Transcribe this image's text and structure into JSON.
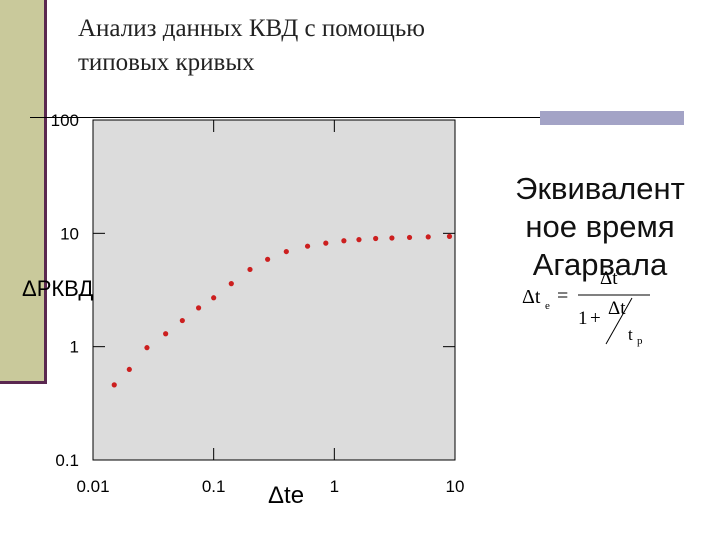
{
  "title_lines": [
    "Анализ данных КВД с помощью",
    "типовых кривых"
  ],
  "side_title_lines": [
    "Эквивалент",
    "ное время",
    "Агарвала"
  ],
  "formula": {
    "lhs_symbol": "Δt",
    "lhs_sub": "e",
    "equals": "=",
    "numerator": "Δt",
    "den_one": "1",
    "den_plus": "+",
    "inner_num": "Δt",
    "inner_den_symbol": "t",
    "inner_den_sub": "p"
  },
  "colors": {
    "plot_bg": "#dcdcdc",
    "points": "#cc1f1f",
    "left_bar": "#c9c99b",
    "accent_block": "#a3a3c6"
  },
  "chart_data": {
    "type": "scatter",
    "x_scale": "log",
    "y_scale": "log",
    "xlim": [
      0.01,
      10
    ],
    "ylim": [
      0.1,
      100
    ],
    "x_ticks": [
      "0.01",
      "0.1",
      "1",
      "10"
    ],
    "y_ticks": [
      "100",
      "10",
      "1",
      "0.1"
    ],
    "xlabel": "Δte",
    "ylabel": "ΔPКВД",
    "grid": false,
    "series": [
      {
        "x": [
          0.015,
          0.02,
          0.028,
          0.04,
          0.055,
          0.075,
          0.1,
          0.14,
          0.2,
          0.28,
          0.4,
          0.6,
          0.85,
          1.2,
          1.6,
          2.2,
          3.0,
          4.2,
          6.0,
          9.0
        ],
        "y": [
          0.46,
          0.63,
          0.98,
          1.3,
          1.7,
          2.2,
          2.7,
          3.6,
          4.8,
          5.9,
          6.9,
          7.7,
          8.2,
          8.6,
          8.8,
          9.0,
          9.1,
          9.2,
          9.3,
          9.4
        ]
      }
    ]
  }
}
